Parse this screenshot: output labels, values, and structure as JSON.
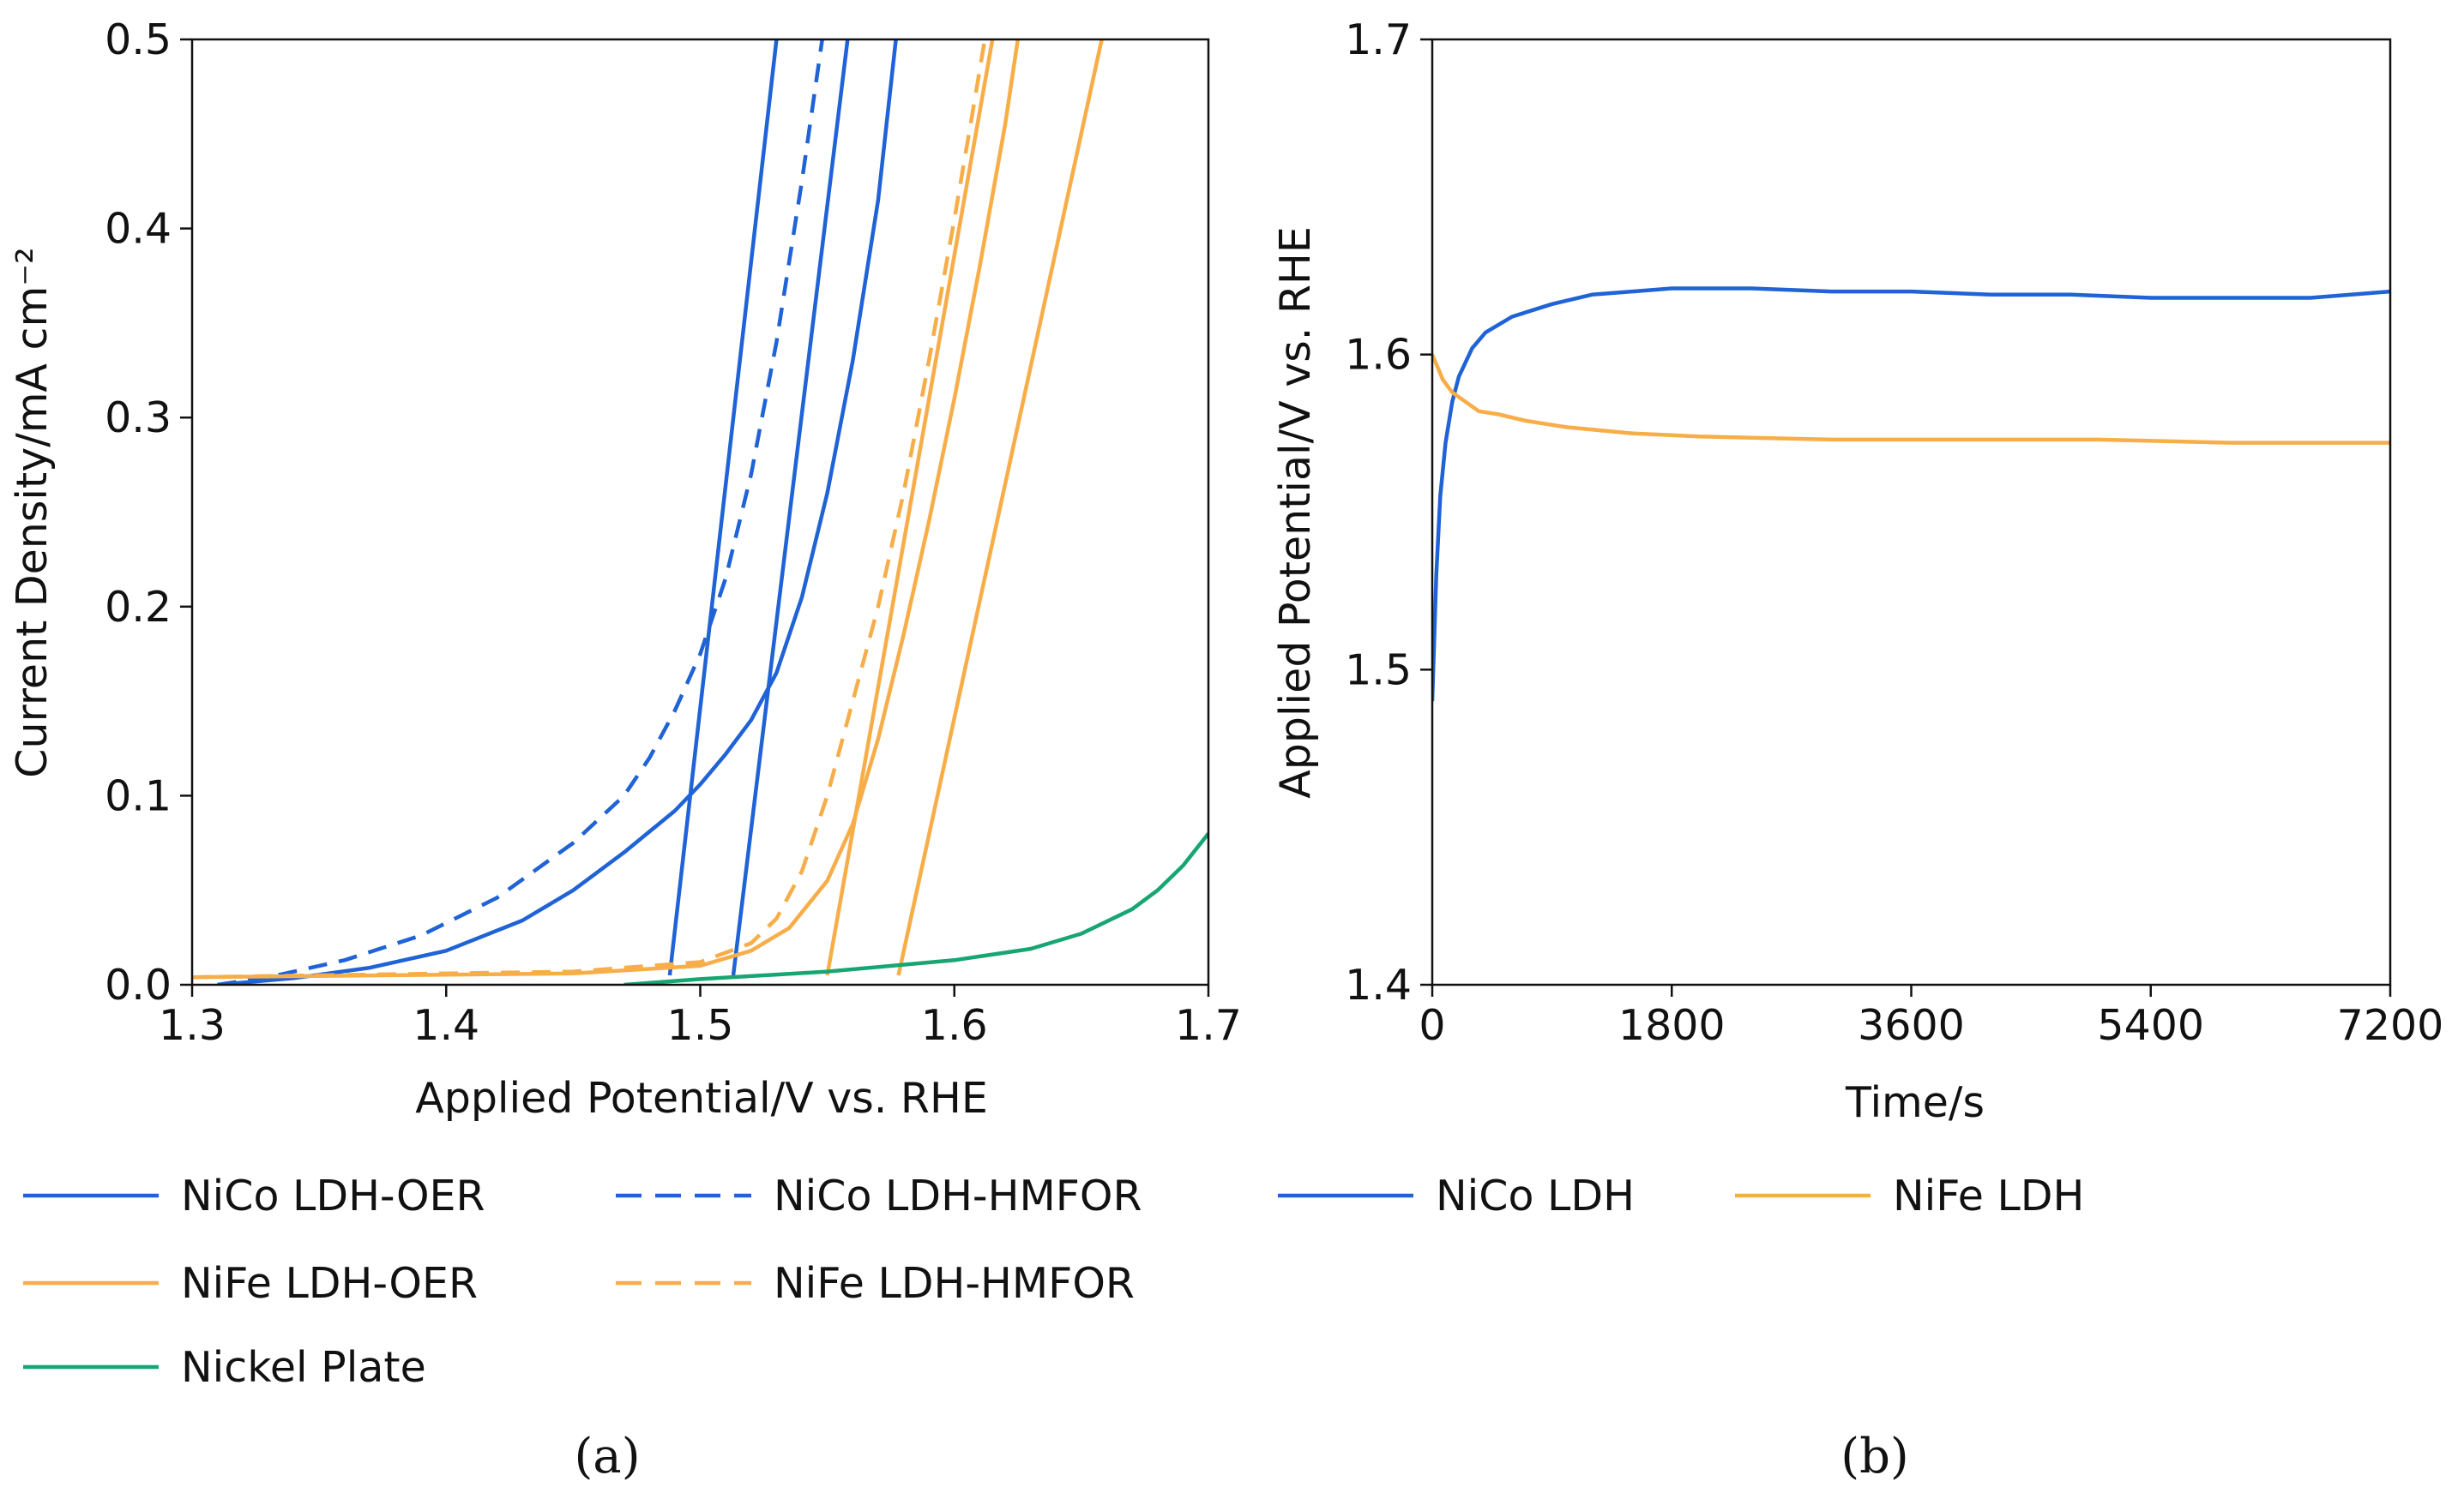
{
  "chart_data": [
    {
      "id": "a",
      "type": "line",
      "caption": "(a)",
      "xlabel": "Applied Potential/V vs. RHE",
      "ylabel": "Current Density/mA cm⁻²",
      "xlim": [
        1.3,
        1.7
      ],
      "ylim": [
        0.0,
        0.5
      ],
      "xticks": [
        1.3,
        1.4,
        1.5,
        1.6,
        1.7
      ],
      "xtick_labels": [
        "1.3",
        "1.4",
        "1.5",
        "1.6",
        "1.7"
      ],
      "yticks": [
        0.0,
        0.1,
        0.2,
        0.3,
        0.4,
        0.5
      ],
      "ytick_labels": [
        "0.0",
        "0.1",
        "0.2",
        "0.3",
        "0.4",
        "0.5"
      ],
      "series": [
        {
          "name": "NiCo LDH-OER",
          "color": "#1f63d6",
          "dash": "solid",
          "segments": [
            [
              [
                1.31,
                0.0
              ],
              [
                1.34,
                0.0035
              ],
              [
                1.37,
                0.009
              ],
              [
                1.4,
                0.018
              ],
              [
                1.43,
                0.034
              ],
              [
                1.45,
                0.05
              ],
              [
                1.47,
                0.07
              ],
              [
                1.49,
                0.092
              ],
              [
                1.5,
                0.106
              ],
              [
                1.51,
                0.122
              ],
              [
                1.52,
                0.14
              ],
              [
                1.53,
                0.165
              ],
              [
                1.54,
                0.205
              ],
              [
                1.55,
                0.26
              ],
              [
                1.56,
                0.33
              ],
              [
                1.57,
                0.415
              ],
              [
                1.577,
                0.5
              ]
            ],
            [
              [
                1.488,
                0.005
              ],
              [
                1.53,
                0.5
              ]
            ],
            [
              [
                1.513,
                0.005
              ],
              [
                1.558,
                0.5
              ]
            ]
          ]
        },
        {
          "name": "NiCo LDH-HMFOR",
          "color": "#1f63d6",
          "dash": "dashed",
          "segments": [
            [
              [
                1.31,
                0.0
              ],
              [
                1.33,
                0.004
              ],
              [
                1.36,
                0.013
              ],
              [
                1.39,
                0.026
              ],
              [
                1.42,
                0.046
              ],
              [
                1.45,
                0.075
              ],
              [
                1.47,
                0.1
              ],
              [
                1.48,
                0.12
              ],
              [
                1.49,
                0.145
              ],
              [
                1.5,
                0.175
              ],
              [
                1.51,
                0.215
              ],
              [
                1.52,
                0.27
              ],
              [
                1.53,
                0.34
              ],
              [
                1.54,
                0.425
              ],
              [
                1.548,
                0.5
              ]
            ]
          ]
        },
        {
          "name": "NiFe LDH-OER",
          "color": "#f7ad48",
          "dash": "solid",
          "segments": [
            [
              [
                1.3,
                0.004
              ],
              [
                1.45,
                0.006
              ],
              [
                1.5,
                0.01
              ],
              [
                1.52,
                0.018
              ],
              [
                1.535,
                0.03
              ],
              [
                1.55,
                0.055
              ],
              [
                1.56,
                0.085
              ],
              [
                1.57,
                0.13
              ],
              [
                1.58,
                0.185
              ],
              [
                1.59,
                0.245
              ],
              [
                1.6,
                0.31
              ],
              [
                1.61,
                0.38
              ],
              [
                1.62,
                0.455
              ],
              [
                1.625,
                0.5
              ]
            ],
            [
              [
                1.55,
                0.005
              ],
              [
                1.615,
                0.5
              ]
            ],
            [
              [
                1.578,
                0.005
              ],
              [
                1.658,
                0.5
              ]
            ]
          ]
        },
        {
          "name": "NiFe LDH-HMFOR",
          "color": "#f7ad48",
          "dash": "dashed",
          "segments": [
            [
              [
                1.3,
                0.004
              ],
              [
                1.45,
                0.007
              ],
              [
                1.5,
                0.012
              ],
              [
                1.52,
                0.022
              ],
              [
                1.53,
                0.035
              ],
              [
                1.54,
                0.06
              ],
              [
                1.55,
                0.1
              ],
              [
                1.56,
                0.15
              ],
              [
                1.57,
                0.2
              ],
              [
                1.58,
                0.26
              ],
              [
                1.59,
                0.33
              ],
              [
                1.6,
                0.405
              ],
              [
                1.607,
                0.46
              ],
              [
                1.612,
                0.5
              ]
            ]
          ]
        },
        {
          "name": "Nickel Plate",
          "color": "#17a673",
          "dash": "solid",
          "segments": [
            [
              [
                1.47,
                0.0
              ],
              [
                1.5,
                0.003
              ],
              [
                1.55,
                0.007
              ],
              [
                1.6,
                0.013
              ],
              [
                1.63,
                0.019
              ],
              [
                1.65,
                0.027
              ],
              [
                1.67,
                0.04
              ],
              [
                1.68,
                0.05
              ],
              [
                1.69,
                0.063
              ],
              [
                1.7,
                0.08
              ]
            ]
          ]
        }
      ],
      "legend": [
        {
          "name": "NiCo LDH-OER",
          "color": "#1f63d6",
          "dash": "solid"
        },
        {
          "name": "NiCo LDH-HMFOR",
          "color": "#1f63d6",
          "dash": "dashed"
        },
        {
          "name": "NiFe LDH-OER",
          "color": "#f7ad48",
          "dash": "solid"
        },
        {
          "name": "NiFe LDH-HMFOR",
          "color": "#f7ad48",
          "dash": "dashed"
        },
        {
          "name": "Nickel Plate",
          "color": "#17a673",
          "dash": "solid"
        }
      ]
    },
    {
      "id": "b",
      "type": "line",
      "caption": "(b)",
      "xlabel": "Time/s",
      "ylabel": "Applied Potential/V vs. RHE",
      "xlim": [
        0,
        7200
      ],
      "ylim": [
        1.4,
        1.7
      ],
      "xticks": [
        0,
        1800,
        3600,
        5400,
        7200
      ],
      "xtick_labels": [
        "0",
        "1800",
        "3600",
        "5400",
        "7200"
      ],
      "yticks": [
        1.4,
        1.5,
        1.6,
        1.7
      ],
      "ytick_labels": [
        "1.4",
        "1.5",
        "1.6",
        "1.7"
      ],
      "series": [
        {
          "name": "NiCo LDH",
          "color": "#1f63d6",
          "dash": "solid",
          "segments": [
            [
              [
                0,
                1.49
              ],
              [
                30,
                1.53
              ],
              [
                60,
                1.555
              ],
              [
                100,
                1.572
              ],
              [
                150,
                1.585
              ],
              [
                200,
                1.593
              ],
              [
                300,
                1.602
              ],
              [
                400,
                1.607
              ],
              [
                600,
                1.612
              ],
              [
                900,
                1.616
              ],
              [
                1200,
                1.619
              ],
              [
                1800,
                1.621
              ],
              [
                2400,
                1.621
              ],
              [
                3000,
                1.62
              ],
              [
                3600,
                1.62
              ],
              [
                4200,
                1.619
              ],
              [
                4800,
                1.619
              ],
              [
                5400,
                1.618
              ],
              [
                6000,
                1.618
              ],
              [
                6600,
                1.618
              ],
              [
                7200,
                1.62
              ]
            ]
          ]
        },
        {
          "name": "NiFe LDH",
          "color": "#f7ad48",
          "dash": "solid",
          "segments": [
            [
              [
                0,
                1.6
              ],
              [
                30,
                1.597
              ],
              [
                80,
                1.592
              ],
              [
                150,
                1.588
              ],
              [
                250,
                1.585
              ],
              [
                350,
                1.582
              ],
              [
                500,
                1.581
              ],
              [
                700,
                1.579
              ],
              [
                1000,
                1.577
              ],
              [
                1500,
                1.575
              ],
              [
                2000,
                1.574
              ],
              [
                3000,
                1.573
              ],
              [
                4000,
                1.573
              ],
              [
                5000,
                1.573
              ],
              [
                6000,
                1.572
              ],
              [
                7200,
                1.572
              ]
            ]
          ]
        }
      ],
      "legend": [
        {
          "name": "NiCo LDH",
          "color": "#1f63d6",
          "dash": "solid"
        },
        {
          "name": "NiFe LDH",
          "color": "#f7ad48",
          "dash": "solid"
        }
      ]
    }
  ]
}
